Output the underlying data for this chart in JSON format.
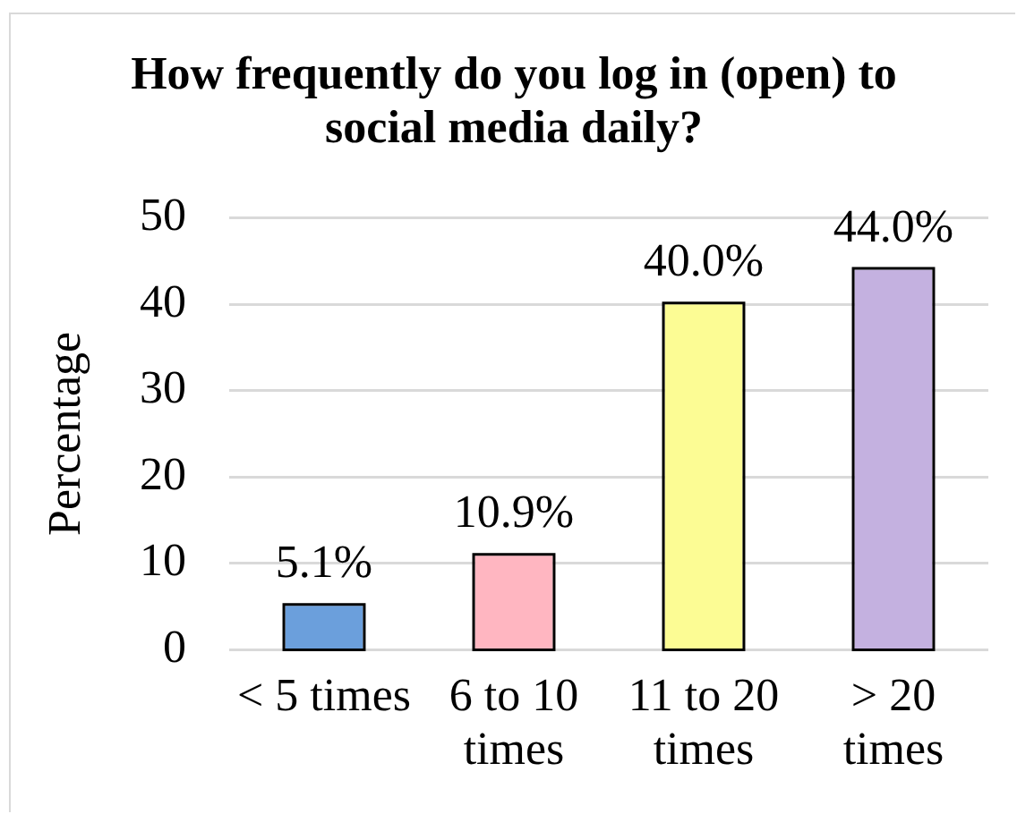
{
  "chart_data": {
    "type": "bar",
    "title": "How frequently do you log in (open) to social media daily?",
    "ylabel": "Percentage",
    "categories": [
      "< 5 times",
      "6 to 10 times",
      "11 to 20 times",
      "> 20 times"
    ],
    "values": [
      5.1,
      10.9,
      40.0,
      44.0
    ],
    "colors": [
      "#6b9fdc",
      "#ffb6c1",
      "#fcfc94",
      "#c4b1e0"
    ],
    "value_labels": [
      "5.1%",
      "10.9%",
      "40.0%",
      "44.0%"
    ],
    "ylim": [
      0,
      50
    ],
    "yticks": [
      0,
      10,
      20,
      30,
      40,
      50
    ],
    "grid": "y"
  }
}
